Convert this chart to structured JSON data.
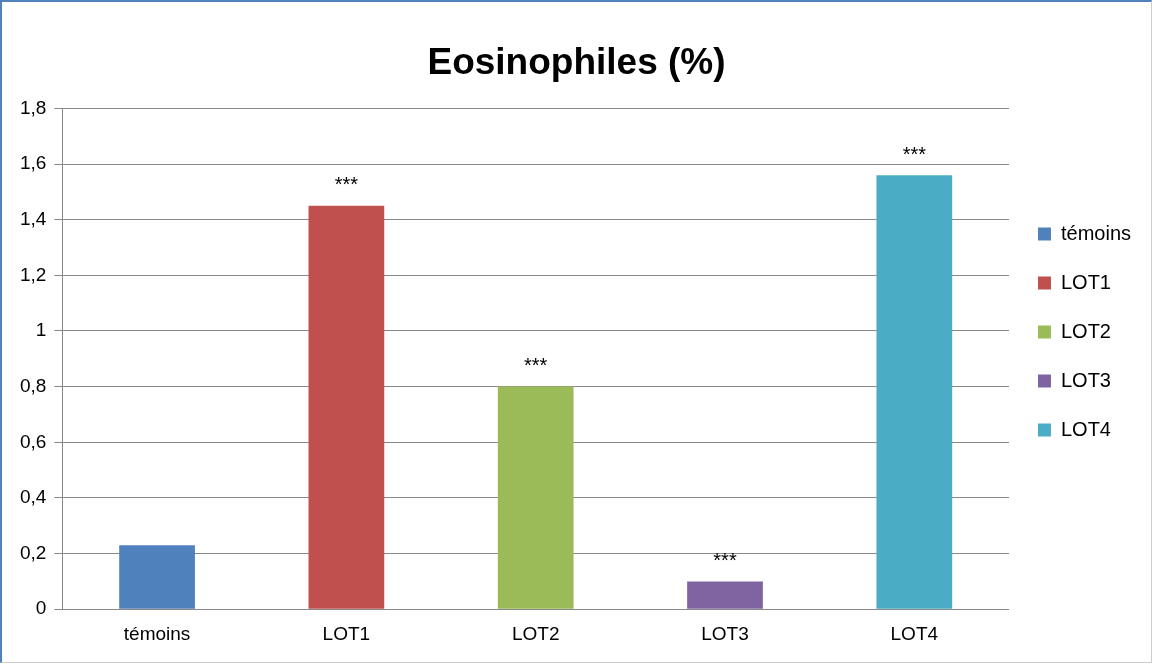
{
  "chart_data": {
    "type": "bar",
    "title": "Eosinophiles (%)",
    "categories": [
      "témoins",
      "LOT1",
      "LOT2",
      "LOT3",
      "LOT4"
    ],
    "series": [
      {
        "name": "témoins",
        "color": "#4f81bd",
        "values": [
          0.23,
          null,
          null,
          null,
          null
        ]
      },
      {
        "name": "LOT1",
        "color": "#c0504d",
        "values": [
          null,
          1.45,
          null,
          null,
          null
        ]
      },
      {
        "name": "LOT2",
        "color": "#9bbb59",
        "values": [
          null,
          null,
          0.8,
          null,
          null
        ]
      },
      {
        "name": "LOT3",
        "color": "#8064a2",
        "values": [
          null,
          null,
          null,
          0.1,
          null
        ]
      },
      {
        "name": "LOT4",
        "color": "#4bacc6",
        "values": [
          null,
          null,
          null,
          null,
          1.56
        ]
      }
    ],
    "ylim": [
      0,
      1.8
    ],
    "yticks": [
      0,
      {
        "value": 0.2,
        "label": "0,2"
      },
      {
        "value": 0.4,
        "label": "0,4"
      },
      {
        "value": 0.6,
        "label": "0,6"
      },
      {
        "value": 0.8,
        "label": "0,8"
      },
      1,
      {
        "value": 1.2,
        "label": "1,2"
      },
      {
        "value": 1.4,
        "label": "1,4"
      },
      {
        "value": 1.6,
        "label": "1,6"
      },
      {
        "value": 1.8,
        "label": "1,8"
      }
    ],
    "grid": "y",
    "legend": "right",
    "annotations": [
      {
        "text": "***",
        "x": "LOT1",
        "y": 1.45
      },
      {
        "text": "***",
        "x": "LOT2",
        "y": 0.8
      },
      {
        "text": "***",
        "x": "LOT3",
        "y": 0.1
      },
      {
        "text": "***",
        "x": "LOT4",
        "y": 1.56
      }
    ]
  }
}
